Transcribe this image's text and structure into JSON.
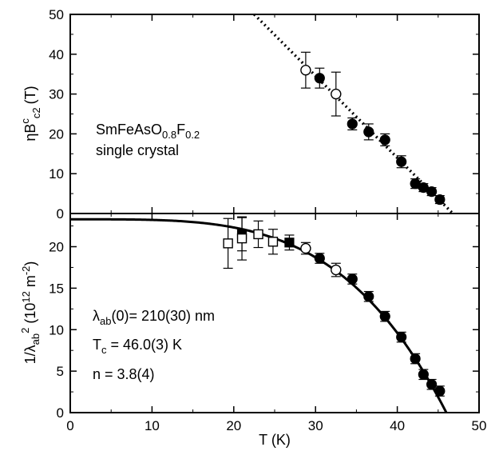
{
  "chart_data": [
    {
      "type": "scatter",
      "panel": "top",
      "ylabel": {
        "base": "ηB",
        "sup": "c",
        "sub": "c2",
        "unit": "(T)"
      },
      "ylim": [
        0,
        50
      ],
      "yticks": [
        0,
        10,
        20,
        30,
        40,
        50
      ],
      "xlim": [
        0,
        50
      ],
      "annotations": {
        "line1": {
          "base": "SmFeAsO",
          "sub1": "0.8",
          "mid": "F",
          "sub2": "0.2"
        },
        "line2": "single crystal"
      },
      "series": [
        {
          "marker": "filled-circle",
          "points": [
            {
              "x": 30.5,
              "y": 34,
              "err": 2.5
            },
            {
              "x": 34.5,
              "y": 22.5,
              "err": 1.5
            },
            {
              "x": 36.5,
              "y": 20.5,
              "err": 2
            },
            {
              "x": 38.5,
              "y": 18.5,
              "err": 1.5
            },
            {
              "x": 40.5,
              "y": 13,
              "err": 1.5
            },
            {
              "x": 42.2,
              "y": 7.5,
              "err": 1.2
            },
            {
              "x": 43.2,
              "y": 6.5,
              "err": 1
            },
            {
              "x": 44.2,
              "y": 5.5,
              "err": 1
            },
            {
              "x": 45.2,
              "y": 3.5,
              "err": 1
            }
          ]
        },
        {
          "marker": "open-circle",
          "points": [
            {
              "x": 28.8,
              "y": 36,
              "err": 4.5
            },
            {
              "x": 32.5,
              "y": 30,
              "err": 5.5
            }
          ]
        }
      ],
      "fit_line": {
        "style": "dotted",
        "from": [
          22.5,
          50
        ],
        "to": [
          46.8,
          0
        ]
      }
    },
    {
      "type": "scatter",
      "panel": "bottom",
      "xlabel": "T (K)",
      "xlim": [
        0,
        50
      ],
      "xticks": [
        0,
        10,
        20,
        30,
        40,
        50
      ],
      "ylabel": {
        "pre": "1/λ",
        "sub": "ab",
        "sup": "2",
        "unit_pre": " (10",
        "unit_sup": "12",
        "unit_post": " m",
        "unit_sup2": "-2",
        "unit_close": ")"
      },
      "ylim": [
        0,
        24
      ],
      "yticks": [
        0,
        5,
        10,
        15,
        20
      ],
      "annotations": {
        "lambda": {
          "pre": "λ",
          "sub": "ab",
          "post": "(0)= 210(30) nm"
        },
        "tc": {
          "pre": "T",
          "sub": "c",
          "post": " = 46.0(3) K"
        },
        "n": "n = 3.8(4)"
      },
      "fit_curve": {
        "lambda0_nm": 210,
        "Tc_K": 46.0,
        "n": 3.8,
        "amplitude": 23.3
      },
      "series": [
        {
          "marker": "filled-circle",
          "points": [
            {
              "x": 30.5,
              "y": 18.6,
              "err": 0.6
            },
            {
              "x": 34.5,
              "y": 16.1,
              "err": 0.6
            },
            {
              "x": 36.5,
              "y": 14.0,
              "err": 0.6
            },
            {
              "x": 38.5,
              "y": 11.6,
              "err": 0.6
            },
            {
              "x": 40.5,
              "y": 9.1,
              "err": 0.6
            },
            {
              "x": 42.2,
              "y": 6.5,
              "err": 0.6
            },
            {
              "x": 43.2,
              "y": 4.6,
              "err": 0.6
            },
            {
              "x": 44.2,
              "y": 3.4,
              "err": 0.6
            },
            {
              "x": 45.2,
              "y": 2.6,
              "err": 0.6
            }
          ]
        },
        {
          "marker": "open-circle",
          "points": [
            {
              "x": 28.8,
              "y": 19.8,
              "err": 0.7
            },
            {
              "x": 32.5,
              "y": 17.2,
              "err": 0.8
            }
          ]
        },
        {
          "marker": "filled-square",
          "points": [
            {
              "x": 21.0,
              "y": 21.5,
              "err": 2.0
            },
            {
              "x": 26.8,
              "y": 20.5,
              "err": 0.9
            }
          ]
        },
        {
          "marker": "open-square",
          "points": [
            {
              "x": 19.3,
              "y": 20.4,
              "err": 3.0
            },
            {
              "x": 21.0,
              "y": 21.0,
              "err": 2.6
            },
            {
              "x": 23.0,
              "y": 21.5,
              "err": 1.6
            },
            {
              "x": 24.8,
              "y": 20.6,
              "err": 1.5
            }
          ]
        }
      ]
    }
  ]
}
